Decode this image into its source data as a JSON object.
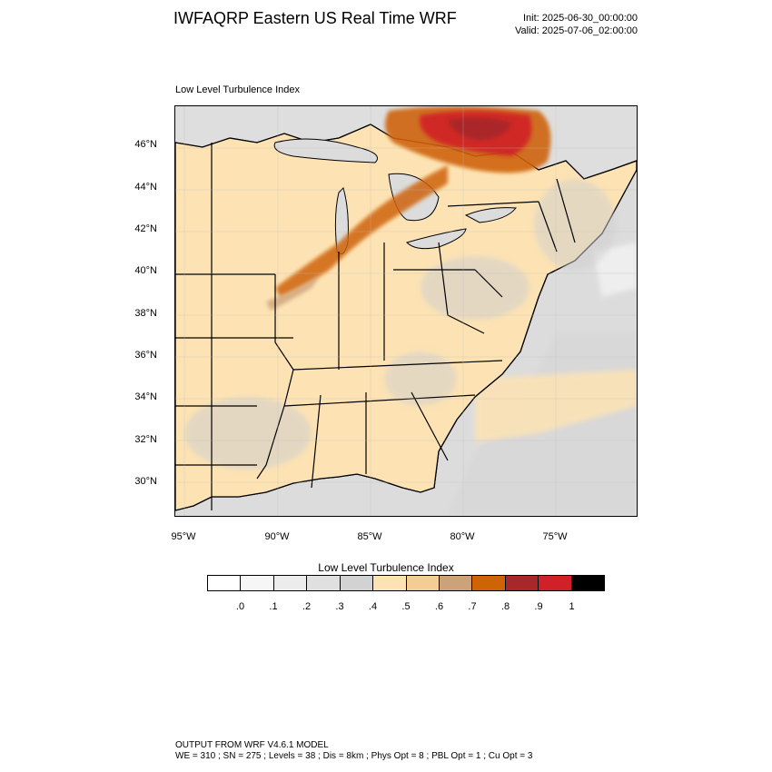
{
  "header": {
    "title": "IWFAQRP Eastern US Real Time WRF",
    "init": "Init: 2025-06-30_00:00:00",
    "valid": "Valid: 2025-07-06_02:00:00",
    "field_label": "Low Level Turbulence Index"
  },
  "map": {
    "lat_labels": [
      "46°N",
      "44°N",
      "42°N",
      "40°N",
      "38°N",
      "36°N",
      "34°N",
      "32°N",
      "30°N"
    ],
    "lon_labels": [
      "95°W",
      "90°W",
      "85°W",
      "80°W",
      "75°W"
    ],
    "colors": {
      "land_base": "#fde3b3",
      "ocean_base": "#dcdcdc",
      "state_line": "#000000",
      "county_line": "#333333"
    }
  },
  "colorbar": {
    "title": "Low Level Turbulence Index",
    "labels": [
      ".0",
      ".1",
      ".2",
      ".3",
      ".4",
      ".5",
      ".6",
      ".7",
      ".8",
      ".9",
      "1"
    ],
    "colors": [
      "#ffffff",
      "#f6f6f6",
      "#ececec",
      "#e0e0e0",
      "#d2d2d2",
      "#fde3b3",
      "#f4cd96",
      "#cda27a",
      "#cf6407",
      "#a8282a",
      "#d12128",
      "#000000"
    ]
  },
  "footer": {
    "line1": "OUTPUT FROM WRF V4.6.1 MODEL",
    "line2": "WE = 310 ; SN = 275 ; Levels = 38 ; Dis = 8km ; Phys Opt = 8 ; PBL Opt = 1 ; Cu Opt = 3"
  }
}
